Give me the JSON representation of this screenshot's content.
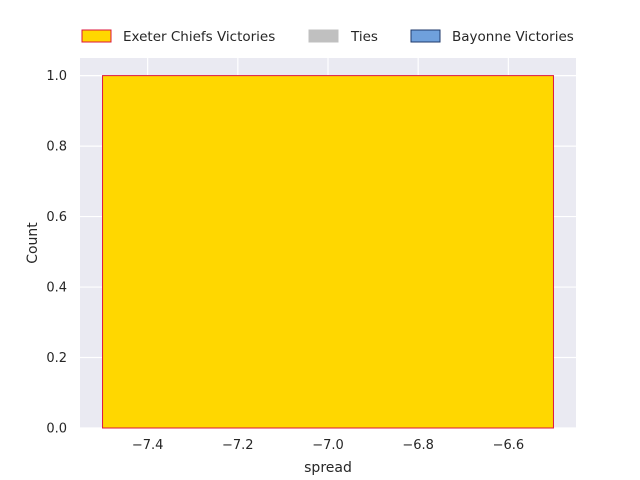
{
  "chart_data": {
    "type": "bar",
    "subtype": "histogram",
    "xlabel": "spread",
    "ylabel": "Count",
    "xlim": [
      -7.55,
      -6.45
    ],
    "ylim": [
      0,
      1.05
    ],
    "x_ticks": [
      -7.4,
      -7.2,
      -7.0,
      -6.8,
      -6.6
    ],
    "x_tick_labels": [
      "−7.4",
      "−7.2",
      "−7.0",
      "−6.8",
      "−6.6"
    ],
    "y_ticks": [
      0,
      0.2,
      0.4,
      0.6,
      0.8,
      1.0
    ],
    "y_tick_labels": [
      "0.0",
      "0.2",
      "0.4",
      "0.6",
      "0.8",
      "1.0"
    ],
    "grid": true,
    "legend_position": "top, outside plot, horizontal",
    "background_color": "#eaeaf2",
    "series": [
      {
        "name": "Exeter Chiefs Victories",
        "color": "#ffd700",
        "edge_color": "#dc143c",
        "bins": [
          {
            "x0": -7.5,
            "x1": -6.5,
            "count": 1
          }
        ]
      },
      {
        "name": "Ties",
        "color": "#c0c0c0",
        "edge_color": "#c0c0c0",
        "bins": []
      },
      {
        "name": "Bayonne Victories",
        "color": "#6fa0dc",
        "edge_color": "#1f3a6b",
        "bins": []
      }
    ]
  }
}
